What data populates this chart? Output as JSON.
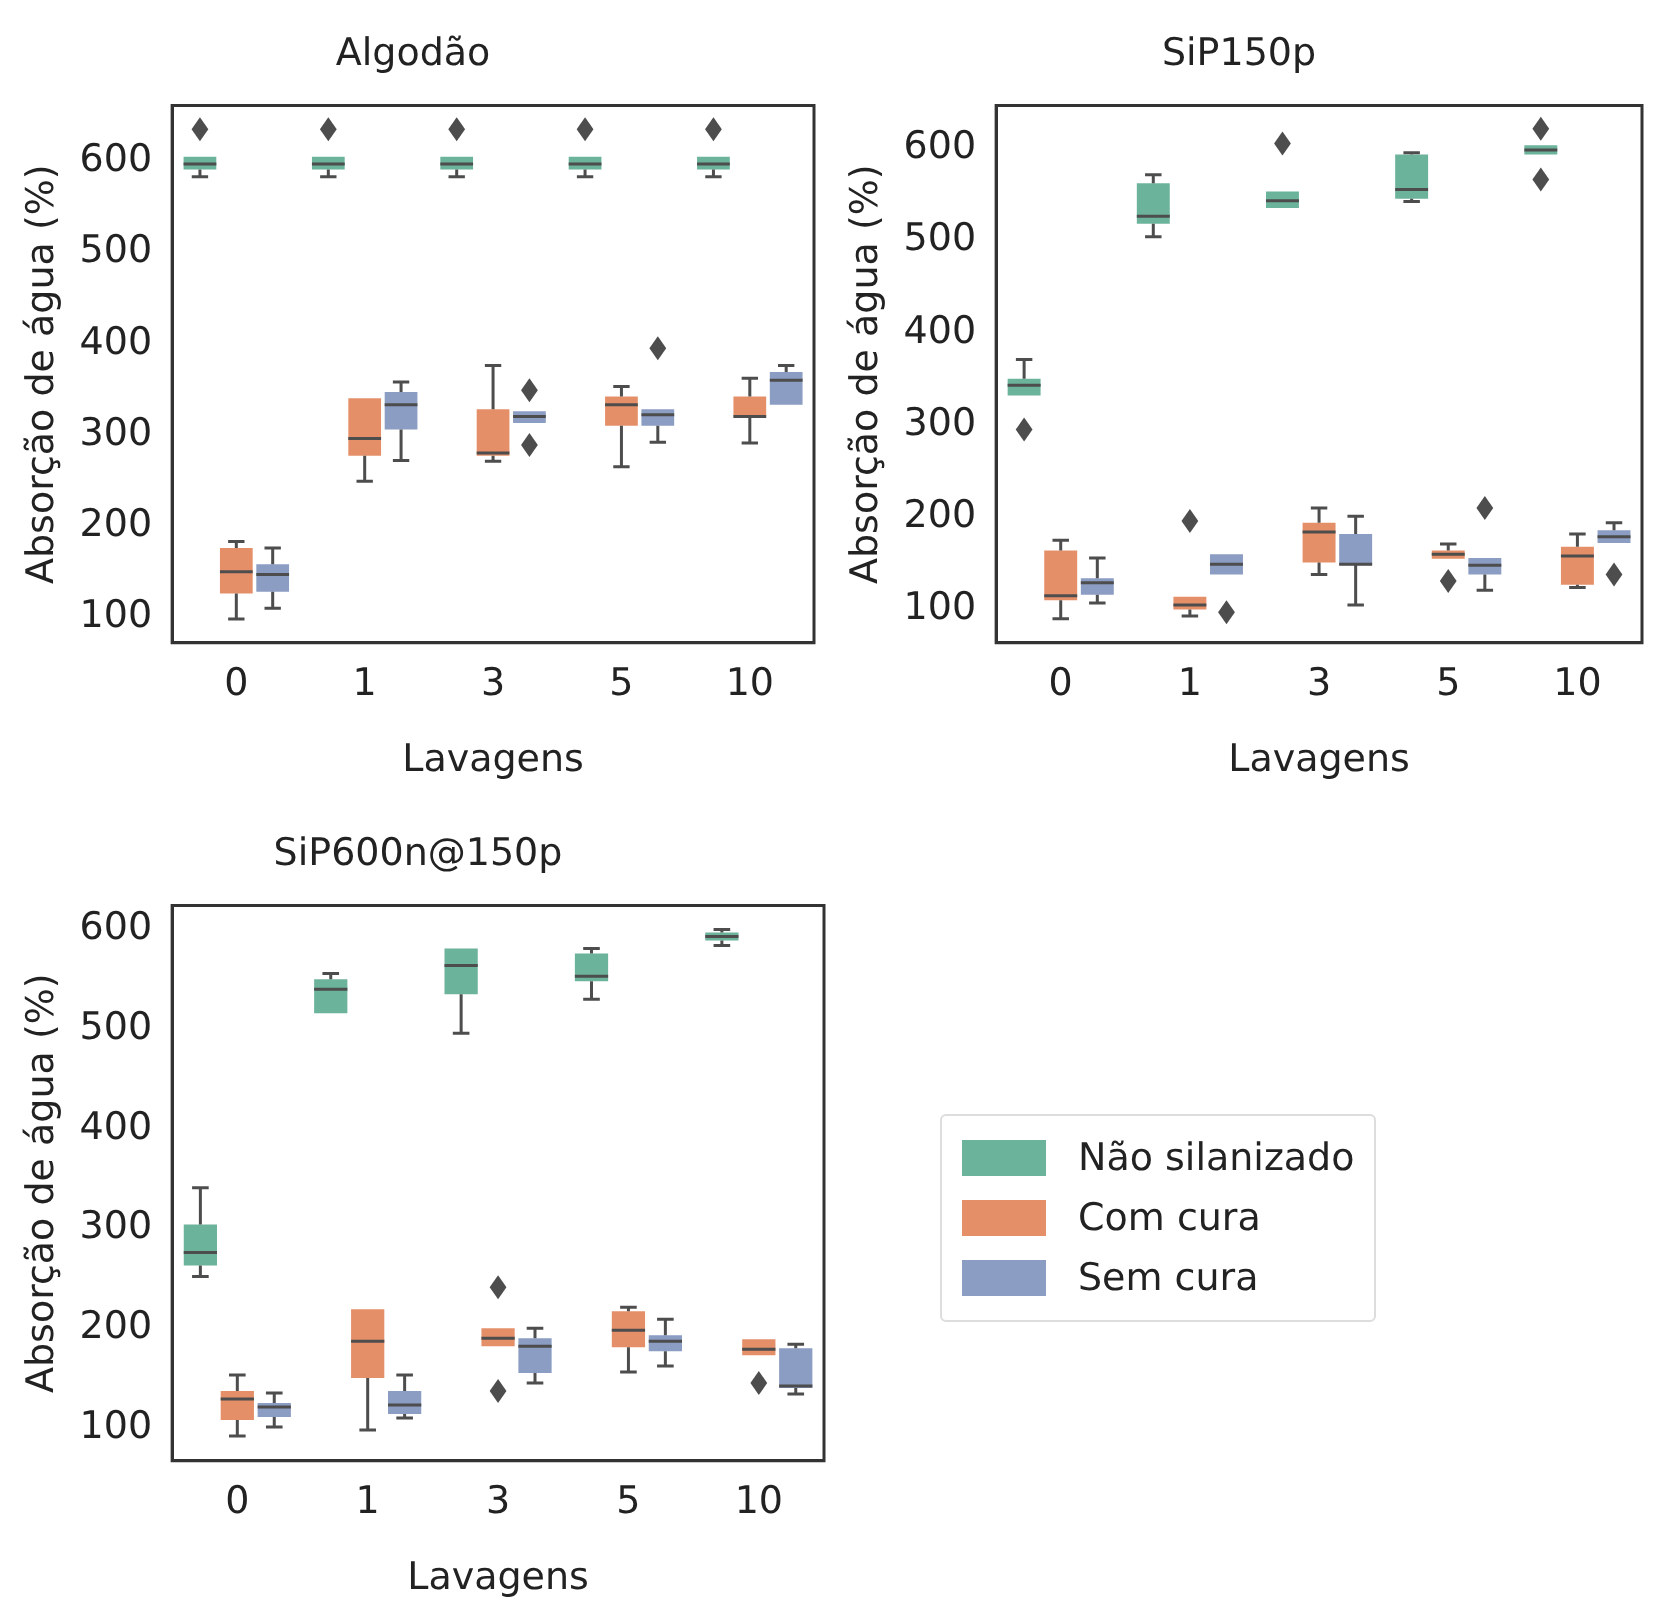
{
  "chart_data": [
    {
      "type": "box",
      "title": "Algodão",
      "xlabel": "Lavagens",
      "ylabel": "Absorção de água (%)",
      "categories": [
        "0",
        "1",
        "3",
        "5",
        "10"
      ],
      "ylim": [
        72,
        661
      ],
      "yticks": [
        100,
        200,
        300,
        400,
        500,
        600
      ],
      "legend": false,
      "marker": "diamond",
      "series": [
        {
          "color": "#6bb39a",
          "boxes": [
            {
              "low": 583,
              "q1": 591,
              "median": 597,
              "q3": 605,
              "high": 605,
              "outliers": [
                635
              ]
            },
            {
              "low": 583,
              "q1": 591,
              "median": 597,
              "q3": 605,
              "high": 605,
              "outliers": [
                635
              ]
            },
            {
              "low": 583,
              "q1": 591,
              "median": 597,
              "q3": 605,
              "high": 605,
              "outliers": [
                635
              ]
            },
            {
              "low": 583,
              "q1": 591,
              "median": 597,
              "q3": 605,
              "high": 605,
              "outliers": [
                635
              ]
            },
            {
              "low": 583,
              "q1": 591,
              "median": 597,
              "q3": 605,
              "high": 605,
              "outliers": [
                635
              ]
            }
          ]
        },
        {
          "color": "#e58f68",
          "boxes": [
            {
              "low": 98,
              "q1": 126,
              "median": 150,
              "q3": 176,
              "high": 183
            },
            {
              "low": 249,
              "q1": 277,
              "median": 296,
              "q3": 340,
              "high": 340
            },
            {
              "low": 271,
              "q1": 277,
              "median": 280,
              "q3": 328,
              "high": 376
            },
            {
              "low": 265,
              "q1": 310,
              "median": 333,
              "q3": 342,
              "high": 353
            },
            {
              "low": 291,
              "q1": 319,
              "median": 320,
              "q3": 342,
              "high": 362
            }
          ]
        },
        {
          "color": "#8b9dc3",
          "boxes": [
            {
              "low": 110,
              "q1": 128,
              "median": 147,
              "q3": 158,
              "high": 176
            },
            {
              "low": 272,
              "q1": 306,
              "median": 333,
              "q3": 347,
              "high": 358
            },
            {
              "low": 313,
              "q1": 313,
              "median": 320,
              "q3": 326,
              "high": 326,
              "outliers": [
                349,
                289
              ]
            },
            {
              "low": 292,
              "q1": 310,
              "median": 322,
              "q3": 328,
              "high": 328,
              "outliers": [
                395
              ]
            },
            {
              "low": 333,
              "q1": 333,
              "median": 360,
              "q3": 369,
              "high": 376
            }
          ]
        }
      ]
    },
    {
      "type": "box",
      "title": "SiP150p",
      "xlabel": "Lavagens",
      "ylabel": "Absorção de água (%)",
      "categories": [
        "0",
        "1",
        "3",
        "5",
        "10"
      ],
      "ylim": [
        64,
        646
      ],
      "yticks": [
        100,
        200,
        300,
        400,
        500,
        600
      ],
      "legend": false,
      "marker": "diamond",
      "series": [
        {
          "color": "#6bb39a",
          "boxes": [
            {
              "low": 332,
              "q1": 332,
              "median": 343,
              "q3": 350,
              "high": 371,
              "outliers": [
                295
              ]
            },
            {
              "low": 504,
              "q1": 518,
              "median": 526,
              "q3": 562,
              "high": 571
            },
            {
              "low": 535,
              "q1": 535,
              "median": 543,
              "q3": 553,
              "high": 553,
              "outliers": [
                605
              ]
            },
            {
              "low": 542,
              "q1": 545,
              "median": 555,
              "q3": 593,
              "high": 595
            },
            {
              "low": 593,
              "q1": 593,
              "median": 598,
              "q3": 603,
              "high": 603,
              "outliers": [
                621,
                566
              ]
            }
          ]
        },
        {
          "color": "#e58f68",
          "boxes": [
            {
              "low": 90,
              "q1": 110,
              "median": 115,
              "q3": 164,
              "high": 175
            },
            {
              "low": 93,
              "q1": 100,
              "median": 105,
              "q3": 114,
              "high": 114,
              "outliers": [
                196
              ]
            },
            {
              "low": 138,
              "q1": 151,
              "median": 184,
              "q3": 194,
              "high": 210
            },
            {
              "low": 155,
              "q1": 155,
              "median": 160,
              "q3": 164,
              "high": 171,
              "outliers": [
                131
              ]
            },
            {
              "low": 124,
              "q1": 127,
              "median": 158,
              "q3": 168,
              "high": 182
            }
          ]
        },
        {
          "color": "#8b9dc3",
          "boxes": [
            {
              "low": 107,
              "q1": 116,
              "median": 129,
              "q3": 134,
              "high": 156
            },
            {
              "low": 138,
              "q1": 138,
              "median": 149,
              "q3": 160,
              "high": 160,
              "outliers": [
                97
              ]
            },
            {
              "low": 105,
              "q1": 148,
              "median": 149,
              "q3": 182,
              "high": 201
            },
            {
              "low": 121,
              "q1": 138,
              "median": 148,
              "q3": 156,
              "high": 156,
              "outliers": [
                210
              ]
            },
            {
              "low": 172,
              "q1": 172,
              "median": 179,
              "q3": 186,
              "high": 194,
              "outliers": [
                138
              ]
            }
          ]
        }
      ]
    },
    {
      "type": "box",
      "title": "SiP600n@150p",
      "xlabel": "Lavagens",
      "ylabel": "Absorção de água (%)",
      "categories": [
        "0",
        "1",
        "3",
        "5",
        "10"
      ],
      "ylim": [
        67,
        624
      ],
      "yticks": [
        100,
        200,
        300,
        400,
        500,
        600
      ],
      "legend": "right",
      "marker": "diamond",
      "series": [
        {
          "name": "Não silanizado",
          "color": "#6bb39a",
          "boxes": [
            {
              "low": 252,
              "q1": 263,
              "median": 276,
              "q3": 304,
              "high": 341
            },
            {
              "low": 516,
              "q1": 516,
              "median": 540,
              "q3": 550,
              "high": 556
            },
            {
              "low": 496,
              "q1": 535,
              "median": 564,
              "q3": 581,
              "high": 581
            },
            {
              "low": 530,
              "q1": 548,
              "median": 553,
              "q3": 576,
              "high": 581
            },
            {
              "low": 584,
              "q1": 589,
              "median": 593,
              "q3": 597,
              "high": 600
            }
          ]
        },
        {
          "name": "Com cura",
          "color": "#e58f68",
          "boxes": [
            {
              "low": 92,
              "q1": 108,
              "median": 129,
              "q3": 137,
              "high": 153
            },
            {
              "low": 98,
              "q1": 150,
              "median": 187,
              "q3": 219,
              "high": 219
            },
            {
              "low": 182,
              "q1": 182,
              "median": 190,
              "q3": 200,
              "high": 200,
              "outliers": [
                241,
                137
              ]
            },
            {
              "low": 156,
              "q1": 181,
              "median": 198,
              "q3": 217,
              "high": 221
            },
            {
              "low": 173,
              "q1": 173,
              "median": 179,
              "q3": 189,
              "high": 189,
              "outliers": [
                145
              ]
            }
          ]
        },
        {
          "name": "Sem cura",
          "color": "#8b9dc3",
          "boxes": [
            {
              "low": 101,
              "q1": 111,
              "median": 121,
              "q3": 125,
              "high": 135
            },
            {
              "low": 110,
              "q1": 114,
              "median": 123,
              "q3": 137,
              "high": 153
            },
            {
              "low": 145,
              "q1": 155,
              "median": 182,
              "q3": 190,
              "high": 200
            },
            {
              "low": 162,
              "q1": 177,
              "median": 187,
              "q3": 193,
              "high": 209
            },
            {
              "low": 134,
              "q1": 140,
              "median": 142,
              "q3": 180,
              "high": 184
            }
          ]
        }
      ]
    }
  ]
}
